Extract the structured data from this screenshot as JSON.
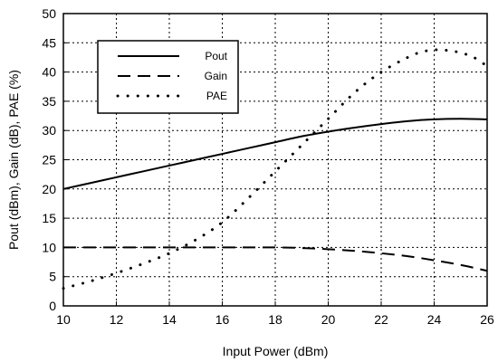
{
  "chart_data": {
    "type": "line",
    "xlabel": "Input Power (dBm)",
    "ylabel": "Pout (dBm), Gain (dB), PAE (%)",
    "xlim": [
      10,
      26
    ],
    "ylim": [
      0,
      50
    ],
    "xticks": [
      10,
      12,
      14,
      16,
      18,
      20,
      22,
      24,
      26
    ],
    "yticks": [
      0,
      5,
      10,
      15,
      20,
      25,
      30,
      35,
      40,
      45,
      50
    ],
    "grid": "dotted",
    "legend_position": "top-left",
    "series": [
      {
        "name": "Pout",
        "style": "solid",
        "x": [
          10,
          11,
          12,
          13,
          14,
          15,
          16,
          17,
          18,
          19,
          20,
          21,
          22,
          23,
          24,
          25,
          26
        ],
        "y": [
          20,
          21,
          22,
          23,
          24,
          25,
          26,
          27,
          28,
          29,
          29.8,
          30.5,
          31.1,
          31.6,
          31.9,
          32,
          31.9
        ]
      },
      {
        "name": "Gain",
        "style": "dashed",
        "x": [
          10,
          12,
          14,
          16,
          18,
          19,
          20,
          21,
          22,
          23,
          24,
          25,
          26
        ],
        "y": [
          10,
          10,
          10,
          10,
          10,
          9.9,
          9.7,
          9.4,
          9.0,
          8.5,
          7.8,
          7.0,
          6.0
        ]
      },
      {
        "name": "PAE",
        "style": "dotted",
        "x": [
          10,
          11,
          12,
          13,
          14,
          15,
          16,
          17,
          18,
          19,
          20,
          21,
          22,
          23,
          23.5,
          24,
          24.5,
          25,
          25.5,
          26
        ],
        "y": [
          3,
          4.2,
          5.6,
          7.2,
          9.0,
          11.3,
          14.3,
          18.5,
          23.0,
          27.5,
          32,
          36.5,
          40,
          42.5,
          43.4,
          43.8,
          43.7,
          43.3,
          42.5,
          41
        ]
      }
    ]
  }
}
